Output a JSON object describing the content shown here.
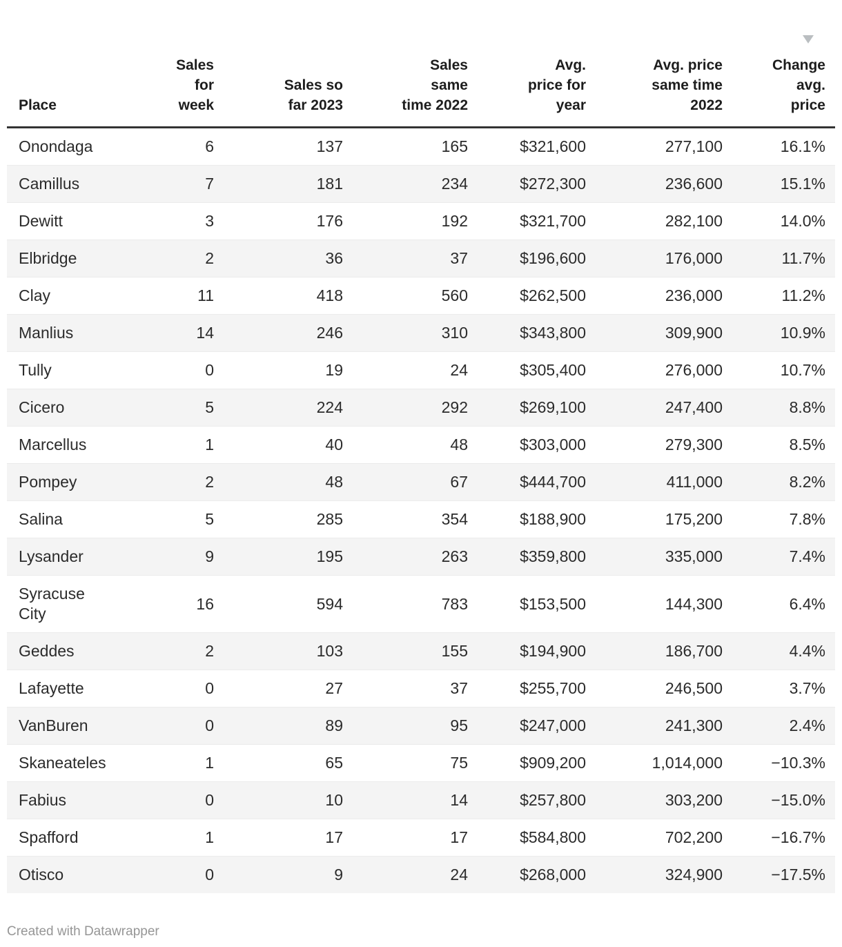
{
  "chart_data": {
    "type": "table",
    "title": "",
    "columns": [
      {
        "key": "place",
        "label": "Place"
      },
      {
        "key": "week",
        "label": "Sales\nfor\nweek"
      },
      {
        "key": "y2023",
        "label": "Sales so\nfar 2023"
      },
      {
        "key": "y2022",
        "label": "Sales\nsame\ntime 2022"
      },
      {
        "key": "price",
        "label": "Avg.\nprice for\nyear"
      },
      {
        "key": "price22",
        "label": "Avg. price\nsame time\n2022"
      },
      {
        "key": "change",
        "label": "Change\navg.\nprice"
      }
    ],
    "sort": {
      "column": "change",
      "direction": "descending",
      "icon": "sort-descending-triangle"
    },
    "rows": [
      {
        "place": "Onondaga",
        "week": "6",
        "y2023": "137",
        "y2022": "165",
        "price": "$321,600",
        "price22": "277,100",
        "change": "16.1%"
      },
      {
        "place": "Camillus",
        "week": "7",
        "y2023": "181",
        "y2022": "234",
        "price": "$272,300",
        "price22": "236,600",
        "change": "15.1%"
      },
      {
        "place": "Dewitt",
        "week": "3",
        "y2023": "176",
        "y2022": "192",
        "price": "$321,700",
        "price22": "282,100",
        "change": "14.0%"
      },
      {
        "place": "Elbridge",
        "week": "2",
        "y2023": "36",
        "y2022": "37",
        "price": "$196,600",
        "price22": "176,000",
        "change": "11.7%"
      },
      {
        "place": "Clay",
        "week": "11",
        "y2023": "418",
        "y2022": "560",
        "price": "$262,500",
        "price22": "236,000",
        "change": "11.2%"
      },
      {
        "place": "Manlius",
        "week": "14",
        "y2023": "246",
        "y2022": "310",
        "price": "$343,800",
        "price22": "309,900",
        "change": "10.9%"
      },
      {
        "place": "Tully",
        "week": "0",
        "y2023": "19",
        "y2022": "24",
        "price": "$305,400",
        "price22": "276,000",
        "change": "10.7%"
      },
      {
        "place": "Cicero",
        "week": "5",
        "y2023": "224",
        "y2022": "292",
        "price": "$269,100",
        "price22": "247,400",
        "change": "8.8%"
      },
      {
        "place": "Marcellus",
        "week": "1",
        "y2023": "40",
        "y2022": "48",
        "price": "$303,000",
        "price22": "279,300",
        "change": "8.5%"
      },
      {
        "place": "Pompey",
        "week": "2",
        "y2023": "48",
        "y2022": "67",
        "price": "$444,700",
        "price22": "411,000",
        "change": "8.2%"
      },
      {
        "place": "Salina",
        "week": "5",
        "y2023": "285",
        "y2022": "354",
        "price": "$188,900",
        "price22": "175,200",
        "change": "7.8%"
      },
      {
        "place": "Lysander",
        "week": "9",
        "y2023": "195",
        "y2022": "263",
        "price": "$359,800",
        "price22": "335,000",
        "change": "7.4%"
      },
      {
        "place": "Syracuse\nCity",
        "week": "16",
        "y2023": "594",
        "y2022": "783",
        "price": "$153,500",
        "price22": "144,300",
        "change": "6.4%"
      },
      {
        "place": "Geddes",
        "week": "2",
        "y2023": "103",
        "y2022": "155",
        "price": "$194,900",
        "price22": "186,700",
        "change": "4.4%"
      },
      {
        "place": "Lafayette",
        "week": "0",
        "y2023": "27",
        "y2022": "37",
        "price": "$255,700",
        "price22": "246,500",
        "change": "3.7%"
      },
      {
        "place": "VanBuren",
        "week": "0",
        "y2023": "89",
        "y2022": "95",
        "price": "$247,000",
        "price22": "241,300",
        "change": "2.4%"
      },
      {
        "place": "Skaneateles",
        "week": "1",
        "y2023": "65",
        "y2022": "75",
        "price": "$909,200",
        "price22": "1,014,000",
        "change": "−10.3%"
      },
      {
        "place": "Fabius",
        "week": "0",
        "y2023": "10",
        "y2022": "14",
        "price": "$257,800",
        "price22": "303,200",
        "change": "−15.0%"
      },
      {
        "place": "Spafford",
        "week": "1",
        "y2023": "17",
        "y2022": "17",
        "price": "$584,800",
        "price22": "702,200",
        "change": "−16.7%"
      },
      {
        "place": "Otisco",
        "week": "0",
        "y2023": "9",
        "y2022": "24",
        "price": "$268,000",
        "price22": "324,900",
        "change": "−17.5%"
      }
    ]
  },
  "footer": {
    "credit": "Created with Datawrapper"
  },
  "colors": {
    "row_stripe": "#f4f4f4",
    "header_rule": "#333333",
    "row_divider": "#ebebeb",
    "body_text": "#2b2b2b",
    "header_text": "#1d1d1d",
    "footer_text": "#969696",
    "sort_arrow": "#babec1",
    "background": "#ffffff"
  }
}
